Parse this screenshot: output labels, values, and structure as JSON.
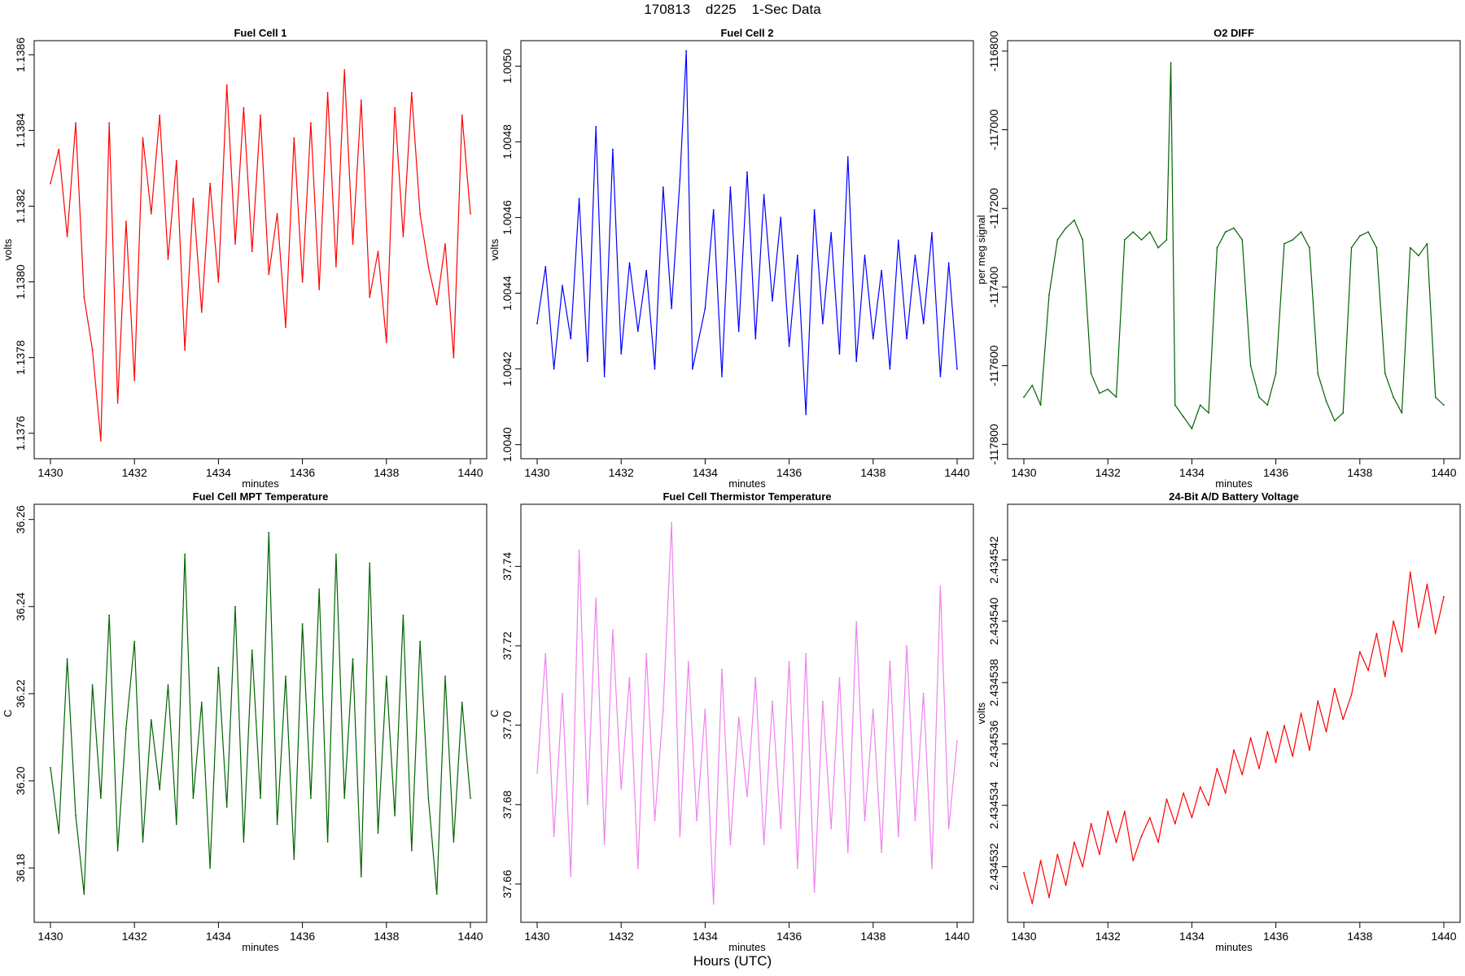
{
  "header": {
    "title": "170813    d225    1-Sec Data"
  },
  "footer": {
    "xlabel": "Hours (UTC)"
  },
  "colors": {
    "red": "#ff0000",
    "blue": "#0000ff",
    "darkgreen": "#006400",
    "violet": "#ee82ee"
  },
  "chart_data": [
    {
      "type": "line",
      "title": "Fuel Cell 1",
      "xlabel": "minutes",
      "ylabel": "volts",
      "color": "red",
      "xlim": [
        1430,
        1440
      ],
      "ylim": [
        1.13755,
        1.13862
      ],
      "xticks": [
        "1430",
        "1432",
        "1434",
        "1436",
        "1438",
        "1440"
      ],
      "yticks": [
        "1.1376",
        "1.1378",
        "1.1380",
        "1.1382",
        "1.1384",
        "1.1386"
      ],
      "x": [
        1430.0,
        1430.2,
        1430.4,
        1430.6,
        1430.8,
        1431.0,
        1431.2,
        1431.4,
        1431.6,
        1431.8,
        1432.0,
        1432.2,
        1432.4,
        1432.6,
        1432.8,
        1433.0,
        1433.2,
        1433.4,
        1433.6,
        1433.8,
        1434.0,
        1434.2,
        1434.4,
        1434.6,
        1434.8,
        1435.0,
        1435.2,
        1435.4,
        1435.6,
        1435.8,
        1436.0,
        1436.2,
        1436.4,
        1436.6,
        1436.8,
        1437.0,
        1437.2,
        1437.4,
        1437.6,
        1437.8,
        1438.0,
        1438.2,
        1438.4,
        1438.6,
        1438.8,
        1439.0,
        1439.2,
        1439.4,
        1439.6,
        1439.8,
        1440.0
      ],
      "values": [
        1.13826,
        1.13835,
        1.13812,
        1.13842,
        1.13796,
        1.13782,
        1.13758,
        1.13842,
        1.13768,
        1.13816,
        1.13774,
        1.13838,
        1.13818,
        1.13844,
        1.13806,
        1.13832,
        1.13782,
        1.13822,
        1.13792,
        1.13826,
        1.138,
        1.13852,
        1.1381,
        1.13846,
        1.13808,
        1.13844,
        1.13802,
        1.13818,
        1.13788,
        1.13838,
        1.138,
        1.13842,
        1.13798,
        1.1385,
        1.13804,
        1.13856,
        1.1381,
        1.13848,
        1.13796,
        1.13808,
        1.13784,
        1.13846,
        1.13812,
        1.1385,
        1.13818,
        1.13804,
        1.13794,
        1.1381,
        1.1378,
        1.13844,
        1.13818
      ]
    },
    {
      "type": "line",
      "title": "Fuel Cell 2",
      "xlabel": "minutes",
      "ylabel": "volts",
      "color": "blue",
      "xlim": [
        1430,
        1440
      ],
      "ylim": [
        1.00398,
        1.00505
      ],
      "xticks": [
        "1430",
        "1432",
        "1434",
        "1436",
        "1438",
        "1440"
      ],
      "yticks": [
        "1.0040",
        "1.0042",
        "1.0044",
        "1.0046",
        "1.0048",
        "1.0050"
      ],
      "x": [
        1430.0,
        1430.2,
        1430.4,
        1430.6,
        1430.8,
        1431.0,
        1431.2,
        1431.4,
        1431.6,
        1431.8,
        1432.0,
        1432.2,
        1432.4,
        1432.6,
        1432.8,
        1433.0,
        1433.2,
        1433.4,
        1433.55,
        1433.7,
        1434.0,
        1434.2,
        1434.4,
        1434.6,
        1434.8,
        1435.0,
        1435.2,
        1435.4,
        1435.6,
        1435.8,
        1436.0,
        1436.2,
        1436.4,
        1436.6,
        1436.8,
        1437.0,
        1437.2,
        1437.4,
        1437.6,
        1437.8,
        1438.0,
        1438.2,
        1438.4,
        1438.6,
        1438.8,
        1439.0,
        1439.2,
        1439.4,
        1439.6,
        1439.8,
        1440.0
      ],
      "values": [
        1.00432,
        1.00447,
        1.0042,
        1.00442,
        1.00428,
        1.00465,
        1.00422,
        1.00484,
        1.00418,
        1.00478,
        1.00424,
        1.00448,
        1.0043,
        1.00446,
        1.0042,
        1.00468,
        1.00436,
        1.0047,
        1.00504,
        1.0042,
        1.00436,
        1.00462,
        1.00418,
        1.00468,
        1.0043,
        1.00472,
        1.00428,
        1.00466,
        1.00438,
        1.0046,
        1.00426,
        1.0045,
        1.00408,
        1.00462,
        1.00432,
        1.00456,
        1.00424,
        1.00476,
        1.00422,
        1.0045,
        1.00428,
        1.00446,
        1.0042,
        1.00454,
        1.00428,
        1.0045,
        1.00432,
        1.00456,
        1.00418,
        1.00448,
        1.0042
      ]
    },
    {
      "type": "line",
      "title": "O2 DIFF",
      "xlabel": "minutes",
      "ylabel": "per meg signal",
      "color": "darkgreen",
      "xlim": [
        1430,
        1440
      ],
      "ylim": [
        -117820,
        -116790
      ],
      "xticks": [
        "1430",
        "1432",
        "1434",
        "1436",
        "1438",
        "1440"
      ],
      "yticks": [
        "-117800",
        "-117600",
        "-117400",
        "-117200",
        "-117000",
        "-116800"
      ],
      "x": [
        1430.0,
        1430.2,
        1430.4,
        1430.6,
        1430.8,
        1431.0,
        1431.2,
        1431.4,
        1431.6,
        1431.8,
        1432.0,
        1432.2,
        1432.4,
        1432.6,
        1432.8,
        1433.0,
        1433.2,
        1433.4,
        1433.5,
        1433.6,
        1433.8,
        1434.0,
        1434.2,
        1434.4,
        1434.6,
        1434.8,
        1435.0,
        1435.2,
        1435.4,
        1435.6,
        1435.8,
        1436.0,
        1436.2,
        1436.4,
        1436.6,
        1436.8,
        1437.0,
        1437.2,
        1437.4,
        1437.6,
        1437.8,
        1438.0,
        1438.2,
        1438.4,
        1438.6,
        1438.8,
        1439.0,
        1439.2,
        1439.4,
        1439.6,
        1439.8,
        1440.0
      ],
      "values": [
        -117680,
        -117650,
        -117700,
        -117420,
        -117280,
        -117250,
        -117230,
        -117280,
        -117620,
        -117670,
        -117660,
        -117680,
        -117280,
        -117260,
        -117280,
        -117260,
        -117300,
        -117280,
        -116830,
        -117700,
        -117730,
        -117760,
        -117700,
        -117720,
        -117300,
        -117260,
        -117250,
        -117280,
        -117600,
        -117680,
        -117700,
        -117620,
        -117290,
        -117280,
        -117260,
        -117300,
        -117620,
        -117690,
        -117740,
        -117720,
        -117300,
        -117270,
        -117260,
        -117300,
        -117620,
        -117680,
        -117720,
        -117300,
        -117320,
        -117290,
        -117680,
        -117700
      ]
    },
    {
      "type": "line",
      "title": "Fuel Cell MPT Temperature",
      "xlabel": "minutes",
      "ylabel": "C",
      "color": "darkgreen",
      "xlim": [
        1430,
        1440
      ],
      "ylim": [
        36.169,
        36.262
      ],
      "xticks": [
        "1430",
        "1432",
        "1434",
        "1436",
        "1438",
        "1440"
      ],
      "yticks": [
        "36.18",
        "36.20",
        "36.22",
        "36.24",
        "36.26"
      ],
      "x": [
        1430.0,
        1430.2,
        1430.4,
        1430.6,
        1430.8,
        1431.0,
        1431.2,
        1431.4,
        1431.6,
        1431.8,
        1432.0,
        1432.2,
        1432.4,
        1432.6,
        1432.8,
        1433.0,
        1433.2,
        1433.4,
        1433.6,
        1433.8,
        1434.0,
        1434.2,
        1434.4,
        1434.6,
        1434.8,
        1435.0,
        1435.2,
        1435.4,
        1435.6,
        1435.8,
        1436.0,
        1436.2,
        1436.4,
        1436.6,
        1436.8,
        1437.0,
        1437.2,
        1437.4,
        1437.6,
        1437.8,
        1438.0,
        1438.2,
        1438.4,
        1438.6,
        1438.8,
        1439.0,
        1439.2,
        1439.4,
        1439.6,
        1439.8,
        1440.0
      ],
      "values": [
        36.203,
        36.188,
        36.228,
        36.192,
        36.174,
        36.222,
        36.196,
        36.238,
        36.184,
        36.212,
        36.232,
        36.186,
        36.214,
        36.198,
        36.222,
        36.19,
        36.252,
        36.196,
        36.218,
        36.18,
        36.226,
        36.194,
        36.24,
        36.186,
        36.23,
        36.196,
        36.257,
        36.19,
        36.224,
        36.182,
        36.236,
        36.196,
        36.244,
        36.186,
        36.252,
        36.196,
        36.228,
        36.178,
        36.25,
        36.188,
        36.224,
        36.192,
        36.238,
        36.184,
        36.232,
        36.196,
        36.174,
        36.224,
        36.186,
        36.218,
        36.196
      ]
    },
    {
      "type": "line",
      "title": "Fuel Cell Thermistor Temperature",
      "xlabel": "minutes",
      "ylabel": "C",
      "color": "violet",
      "xlim": [
        1430,
        1440
      ],
      "ylim": [
        37.652,
        37.754
      ],
      "xticks": [
        "1430",
        "1432",
        "1434",
        "1436",
        "1438",
        "1440"
      ],
      "yticks": [
        "37.66",
        "37.68",
        "37.70",
        "37.72",
        "37.74"
      ],
      "x": [
        1430.0,
        1430.2,
        1430.4,
        1430.6,
        1430.8,
        1431.0,
        1431.2,
        1431.4,
        1431.6,
        1431.8,
        1432.0,
        1432.2,
        1432.4,
        1432.6,
        1432.8,
        1433.0,
        1433.2,
        1433.4,
        1433.6,
        1433.8,
        1434.0,
        1434.2,
        1434.4,
        1434.6,
        1434.8,
        1435.0,
        1435.2,
        1435.4,
        1435.6,
        1435.8,
        1436.0,
        1436.2,
        1436.4,
        1436.6,
        1436.8,
        1437.0,
        1437.2,
        1437.4,
        1437.6,
        1437.8,
        1438.0,
        1438.2,
        1438.4,
        1438.6,
        1438.8,
        1439.0,
        1439.2,
        1439.4,
        1439.6,
        1439.8,
        1440.0
      ],
      "values": [
        37.688,
        37.718,
        37.672,
        37.708,
        37.662,
        37.744,
        37.68,
        37.732,
        37.67,
        37.724,
        37.684,
        37.712,
        37.664,
        37.718,
        37.676,
        37.704,
        37.751,
        37.672,
        37.716,
        37.676,
        37.704,
        37.655,
        37.714,
        37.67,
        37.702,
        37.682,
        37.712,
        37.67,
        37.706,
        37.674,
        37.716,
        37.664,
        37.718,
        37.658,
        37.706,
        37.674,
        37.712,
        37.668,
        37.726,
        37.676,
        37.704,
        37.668,
        37.716,
        37.672,
        37.72,
        37.676,
        37.708,
        37.664,
        37.735,
        37.674,
        37.696
      ]
    },
    {
      "type": "line",
      "title": "24-Bit A/D Battery Voltage",
      "xlabel": "minutes",
      "ylabel": "volts",
      "color": "red",
      "xlim": [
        1430,
        1440
      ],
      "ylim": [
        2.4345304,
        2.4345436
      ],
      "xticks": [
        "1430",
        "1432",
        "1434",
        "1436",
        "1438",
        "1440"
      ],
      "yticks": [
        "2.434532",
        "2.434534",
        "2.434536",
        "2.434538",
        "2.434540",
        "2.434542"
      ],
      "x": [
        1430.0,
        1430.2,
        1430.4,
        1430.6,
        1430.8,
        1431.0,
        1431.2,
        1431.4,
        1431.6,
        1431.8,
        1432.0,
        1432.2,
        1432.4,
        1432.6,
        1432.8,
        1433.0,
        1433.2,
        1433.4,
        1433.6,
        1433.8,
        1434.0,
        1434.2,
        1434.4,
        1434.6,
        1434.8,
        1435.0,
        1435.2,
        1435.4,
        1435.6,
        1435.8,
        1436.0,
        1436.2,
        1436.4,
        1436.6,
        1436.8,
        1437.0,
        1437.2,
        1437.4,
        1437.6,
        1437.8,
        1438.0,
        1438.2,
        1438.4,
        1438.6,
        1438.8,
        1439.0,
        1439.2,
        1439.4,
        1439.6,
        1439.8,
        1440.0
      ],
      "values": [
        2.4345318,
        2.4345308,
        2.4345322,
        2.434531,
        2.4345324,
        2.4345314,
        2.4345328,
        2.434532,
        2.4345334,
        2.4345324,
        2.4345338,
        2.4345328,
        2.4345338,
        2.4345322,
        2.434533,
        2.4345336,
        2.4345328,
        2.4345342,
        2.4345334,
        2.4345344,
        2.4345336,
        2.4345346,
        2.434534,
        2.4345352,
        2.4345344,
        2.4345358,
        2.434535,
        2.4345362,
        2.4345352,
        2.4345364,
        2.4345354,
        2.4345366,
        2.4345356,
        2.434537,
        2.4345358,
        2.4345374,
        2.4345364,
        2.4345378,
        2.4345368,
        2.4345376,
        2.434539,
        2.4345384,
        2.4345396,
        2.4345382,
        2.43454,
        2.434539,
        2.4345416,
        2.4345398,
        2.4345412,
        2.4345396,
        2.4345408
      ]
    }
  ]
}
